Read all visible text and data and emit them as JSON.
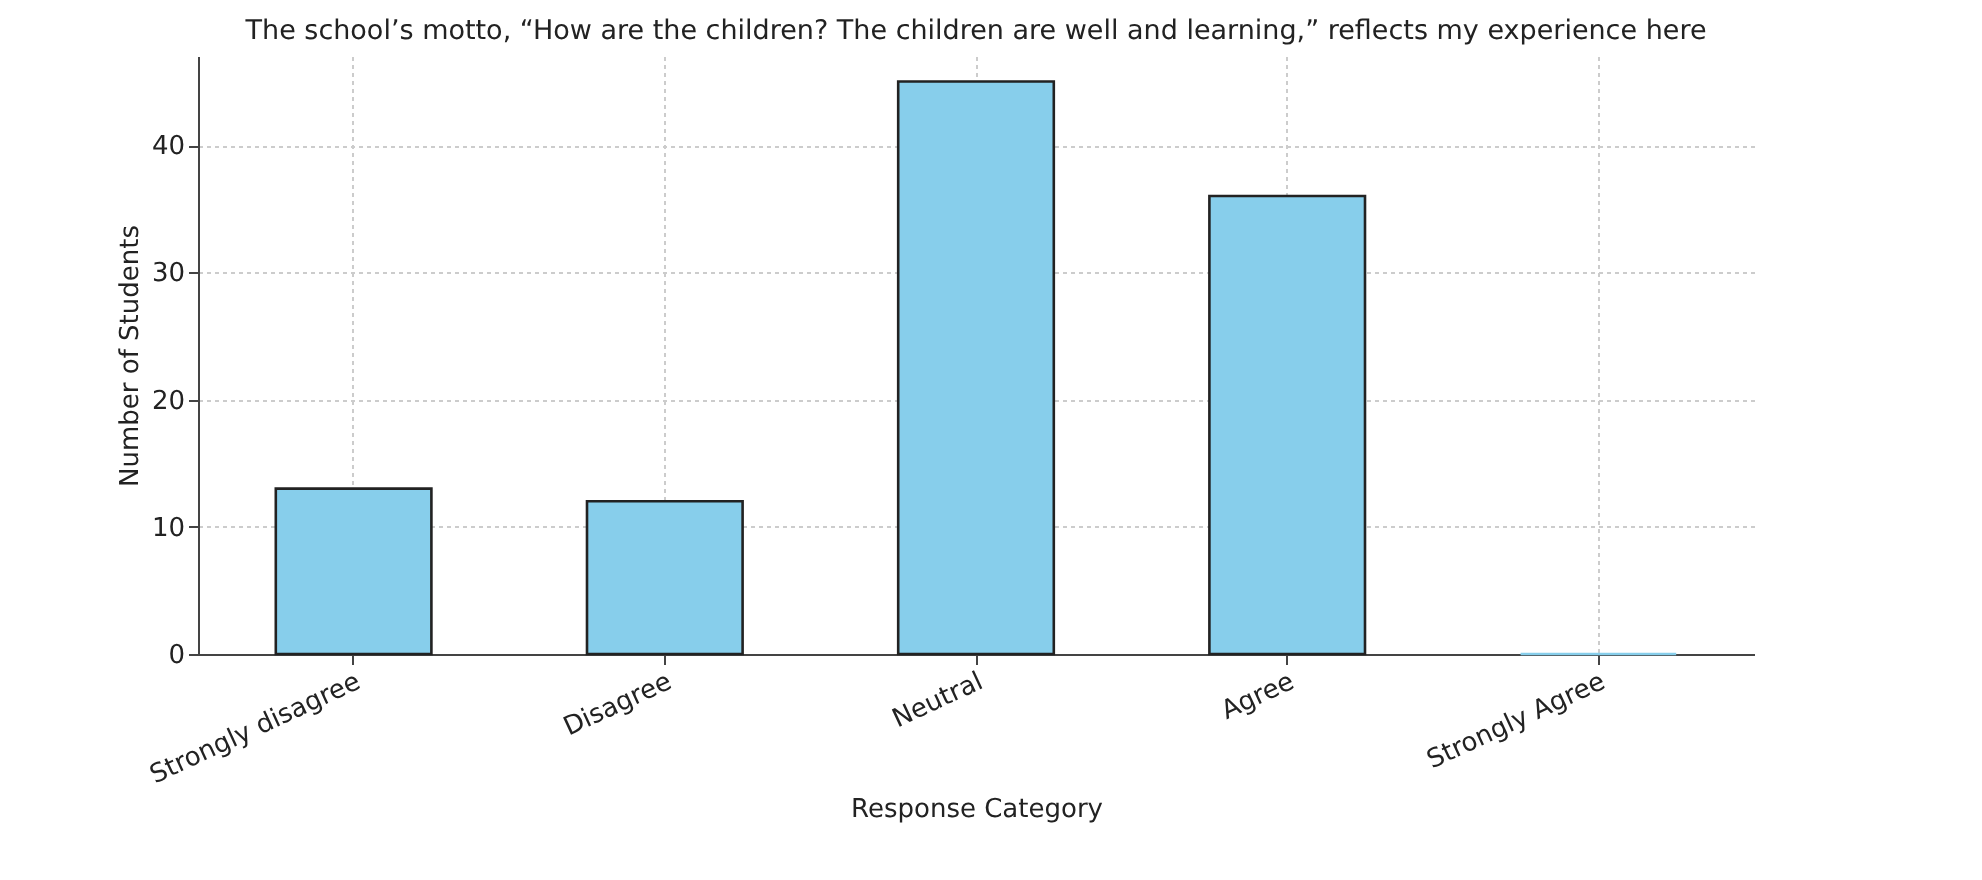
{
  "chart_data": {
    "type": "bar",
    "title": "The school’s motto, “How are the children? The children are well and learning,” reflects my experience here",
    "xlabel": "Response Category",
    "ylabel": "Number of Students",
    "categories": [
      "Strongly disagree",
      "Disagree",
      "Neutral",
      "Agree",
      "Strongly Agree"
    ],
    "values": [
      13,
      12,
      45,
      36,
      0
    ],
    "color": "#87ceeb",
    "ylim": [
      0,
      47
    ],
    "yticks": [
      0,
      10,
      20,
      30,
      40
    ],
    "grid": true
  }
}
